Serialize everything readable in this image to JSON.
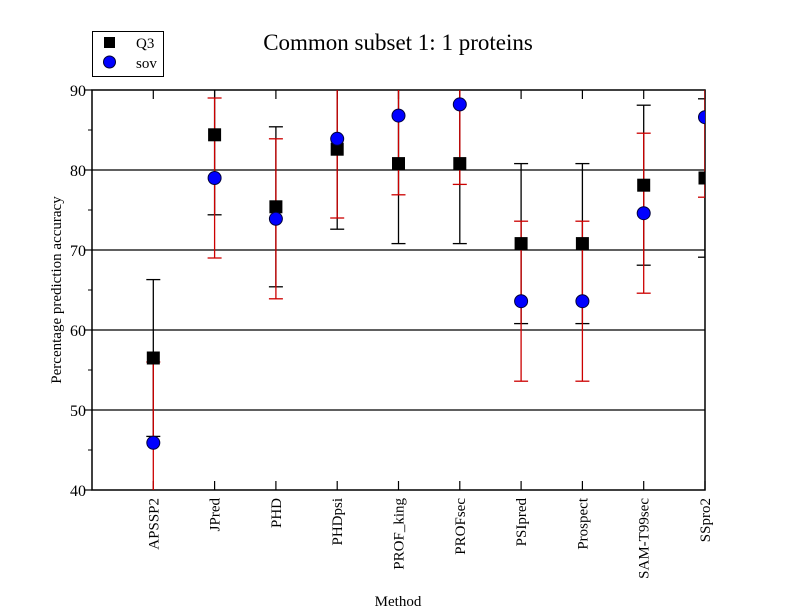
{
  "chart_data": {
    "type": "scatter",
    "title": "Common subset 1: 1 proteins",
    "xlabel": "Method",
    "ylabel": "Percentage prediction accuracy",
    "categories": [
      "APSSP2",
      "JPred",
      "PHD",
      "PHDpsi",
      "PROF_king",
      "PROFsec",
      "PSIpred",
      "Prospect",
      "SAM-T99sec",
      "SSpro2"
    ],
    "xlim": [
      0,
      10
    ],
    "ylim": [
      40,
      90
    ],
    "y_major_ticks": [
      40,
      50,
      60,
      70,
      80,
      90
    ],
    "y_minor_ticks": [
      45,
      55,
      65,
      75,
      85
    ],
    "gridlines_y": [
      50,
      60,
      70,
      80
    ],
    "grid": true,
    "legend_position": "top-left (outside plot)",
    "series": [
      {
        "name": "Q3",
        "marker": "square",
        "color": "#000000",
        "error_color": "#000000",
        "values": [
          56.5,
          84.4,
          75.4,
          82.6,
          80.8,
          80.8,
          70.8,
          70.8,
          78.1,
          79.0
        ],
        "errors": [
          9.8,
          10.0,
          10.0,
          10.0,
          10.0,
          10.0,
          10.0,
          10.0,
          10.0,
          9.9
        ]
      },
      {
        "name": "sov",
        "marker": "circle",
        "color": "#0000ff",
        "error_color": "#cc0000",
        "values": [
          45.9,
          79.0,
          73.9,
          83.9,
          86.8,
          88.2,
          63.6,
          63.6,
          74.6,
          86.6
        ],
        "errors": [
          10.1,
          10.0,
          10.0,
          9.9,
          9.9,
          10.0,
          10.0,
          10.0,
          10.0,
          10.0
        ]
      }
    ]
  }
}
